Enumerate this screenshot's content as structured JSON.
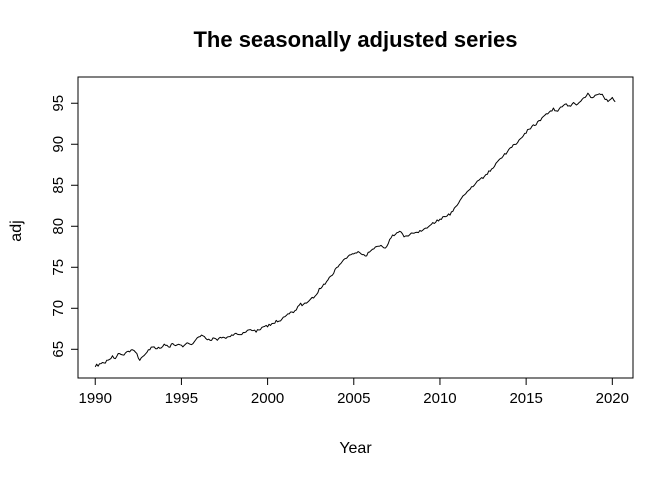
{
  "window": {
    "background": "#ffffff"
  },
  "chart_data": {
    "type": "line",
    "title": "The seasonally adjusted series",
    "xlabel": "Year",
    "ylabel": "adj",
    "series_name": "adj (seasonally adjusted series)",
    "line_color": "#000000",
    "background_color": "#ffffff",
    "grid": false,
    "legend_position": "none",
    "frame_box": true,
    "x_ticks": [
      1990,
      1995,
      2000,
      2005,
      2010,
      2015,
      2020
    ],
    "y_ticks": [
      65,
      70,
      75,
      80,
      85,
      90,
      95
    ],
    "xlim": [
      1989.0,
      2021.2
    ],
    "ylim": [
      61.5,
      98.2
    ],
    "frequency": "monthly",
    "x_start": 1990.0,
    "x_end": 2020.17,
    "noise_amplitude": 0.15,
    "anchors": [
      [
        1990.0,
        63.0
      ],
      [
        1990.2,
        63.1
      ],
      [
        1990.5,
        63.3
      ],
      [
        1990.8,
        63.8
      ],
      [
        1991.0,
        64.1
      ],
      [
        1991.2,
        63.9
      ],
      [
        1991.35,
        64.4
      ],
      [
        1991.55,
        64.2
      ],
      [
        1991.75,
        64.6
      ],
      [
        1992.0,
        64.8
      ],
      [
        1992.15,
        65.0
      ],
      [
        1992.4,
        64.4
      ],
      [
        1992.6,
        63.7
      ],
      [
        1992.9,
        64.5
      ],
      [
        1993.1,
        64.9
      ],
      [
        1993.35,
        65.3
      ],
      [
        1993.55,
        65.0
      ],
      [
        1993.75,
        65.2
      ],
      [
        1994.05,
        65.6
      ],
      [
        1994.3,
        65.3
      ],
      [
        1994.5,
        65.7
      ],
      [
        1994.7,
        65.4
      ],
      [
        1994.9,
        65.6
      ],
      [
        1995.1,
        65.3
      ],
      [
        1995.3,
        65.9
      ],
      [
        1995.5,
        65.6
      ],
      [
        1995.75,
        65.9
      ],
      [
        1996.1,
        66.7
      ],
      [
        1996.35,
        66.4
      ],
      [
        1996.6,
        66.1
      ],
      [
        1996.85,
        66.3
      ],
      [
        1997.1,
        66.1
      ],
      [
        1997.4,
        66.6
      ],
      [
        1997.55,
        66.3
      ],
      [
        1997.8,
        66.6
      ],
      [
        1998.1,
        66.9
      ],
      [
        1998.4,
        66.7
      ],
      [
        1998.7,
        67.1
      ],
      [
        1999.0,
        67.4
      ],
      [
        1999.3,
        67.2
      ],
      [
        1999.6,
        67.5
      ],
      [
        1999.9,
        67.8
      ],
      [
        2000.2,
        68.0
      ],
      [
        2000.5,
        68.4
      ],
      [
        2000.8,
        68.6
      ],
      [
        2001.05,
        69.0
      ],
      [
        2001.3,
        69.4
      ],
      [
        2001.6,
        69.7
      ],
      [
        2001.9,
        70.5
      ],
      [
        2002.1,
        70.4
      ],
      [
        2002.4,
        71.0
      ],
      [
        2002.7,
        71.4
      ],
      [
        2003.0,
        72.3
      ],
      [
        2003.4,
        73.2
      ],
      [
        2003.8,
        74.3
      ],
      [
        2004.2,
        75.5
      ],
      [
        2004.5,
        76.0
      ],
      [
        2004.8,
        76.5
      ],
      [
        2005.1,
        76.9
      ],
      [
        2005.4,
        76.8
      ],
      [
        2005.65,
        76.3
      ],
      [
        2005.9,
        76.9
      ],
      [
        2006.2,
        77.4
      ],
      [
        2006.5,
        77.6
      ],
      [
        2006.8,
        77.4
      ],
      [
        2007.0,
        77.9
      ],
      [
        2007.15,
        78.7
      ],
      [
        2007.4,
        79.0
      ],
      [
        2007.7,
        79.3
      ],
      [
        2007.95,
        78.7
      ],
      [
        2008.2,
        79.0
      ],
      [
        2008.5,
        79.2
      ],
      [
        2008.8,
        79.4
      ],
      [
        2009.1,
        79.7
      ],
      [
        2009.4,
        80.1
      ],
      [
        2009.7,
        80.5
      ],
      [
        2010.0,
        80.9
      ],
      [
        2010.3,
        81.2
      ],
      [
        2010.6,
        81.5
      ],
      [
        2010.9,
        82.3
      ],
      [
        2011.2,
        83.3
      ],
      [
        2011.5,
        84.0
      ],
      [
        2011.8,
        84.6
      ],
      [
        2012.1,
        85.3
      ],
      [
        2012.4,
        85.8
      ],
      [
        2012.7,
        86.3
      ],
      [
        2013.0,
        87.0
      ],
      [
        2013.3,
        87.7
      ],
      [
        2013.6,
        88.4
      ],
      [
        2013.9,
        89.1
      ],
      [
        2014.2,
        89.7
      ],
      [
        2014.5,
        90.3
      ],
      [
        2014.8,
        91.0
      ],
      [
        2015.1,
        91.7
      ],
      [
        2015.4,
        92.2
      ],
      [
        2015.7,
        92.7
      ],
      [
        2016.0,
        93.3
      ],
      [
        2016.3,
        93.9
      ],
      [
        2016.6,
        94.3
      ],
      [
        2016.8,
        94.0
      ],
      [
        2017.0,
        94.5
      ],
      [
        2017.25,
        94.9
      ],
      [
        2017.5,
        94.6
      ],
      [
        2017.75,
        95.1
      ],
      [
        2018.0,
        94.8
      ],
      [
        2018.2,
        95.4
      ],
      [
        2018.45,
        95.8
      ],
      [
        2018.6,
        96.4
      ],
      [
        2018.8,
        95.6
      ],
      [
        2019.0,
        95.9
      ],
      [
        2019.2,
        96.2
      ],
      [
        2019.45,
        96.0
      ],
      [
        2019.6,
        95.5
      ],
      [
        2019.8,
        95.2
      ],
      [
        2020.0,
        95.6
      ],
      [
        2020.17,
        95.3
      ]
    ]
  }
}
